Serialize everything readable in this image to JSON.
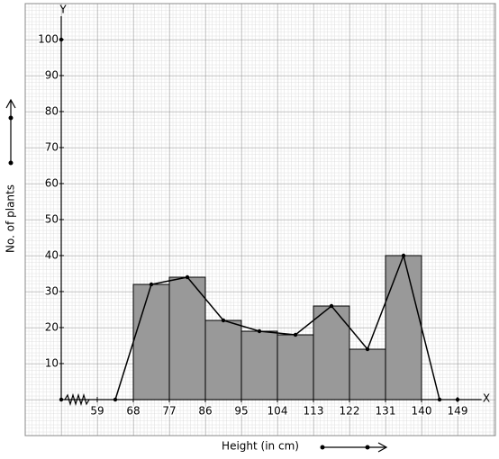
{
  "chart_data": {
    "type": "histogram",
    "x_label": "Height (in cm)",
    "y_label": "No. of plants",
    "x_axis_name": "X",
    "y_axis_name": "Y",
    "bins": [
      68,
      77,
      86,
      95,
      104,
      113,
      122,
      131,
      140
    ],
    "values": [
      32,
      34,
      22,
      19,
      18,
      26,
      14,
      40
    ],
    "color": "#999999",
    "polygon": {
      "x": [
        63.5,
        72.5,
        81.5,
        90.5,
        99.5,
        108.5,
        117.5,
        126.5,
        135.5,
        144.5
      ],
      "values": [
        0,
        32,
        34,
        22,
        19,
        18,
        26,
        14,
        40,
        0
      ],
      "color": "#000000"
    },
    "xlim": [
      50,
      155
    ],
    "ylim": [
      0,
      110
    ],
    "xticks": [
      59,
      68,
      77,
      86,
      95,
      104,
      113,
      122,
      131,
      140,
      149
    ],
    "yticks": [
      10,
      20,
      30,
      40,
      50,
      60,
      70,
      80,
      90,
      100
    ],
    "grid": true
  }
}
